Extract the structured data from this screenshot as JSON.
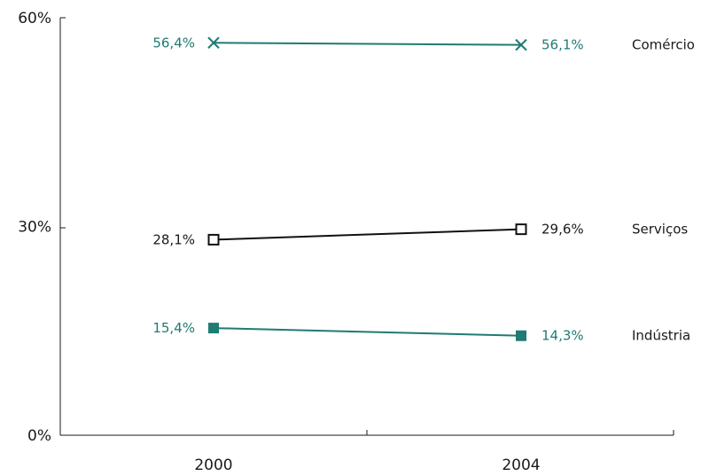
{
  "chart_data": {
    "type": "line",
    "title": "",
    "xlabel": "",
    "ylabel": "",
    "x": [
      "2000",
      "2004"
    ],
    "ylim": [
      0,
      60
    ],
    "y_ticks": [
      {
        "value": 0,
        "label": "0%"
      },
      {
        "value": 30,
        "label": "30%"
      },
      {
        "value": 60,
        "label": "60%"
      }
    ],
    "grid": false,
    "legend": "none",
    "series": [
      {
        "name": "Comércio",
        "values": [
          56.4,
          56.1
        ],
        "labels": [
          "56,4%",
          "56,1%"
        ],
        "color": "#1f7b73",
        "marker": "x",
        "label_color": "#1f7b73"
      },
      {
        "name": "Serviços",
        "values": [
          28.1,
          29.6
        ],
        "labels": [
          "28,1%",
          "29,6%"
        ],
        "color": "#111111",
        "marker": "open-square",
        "label_color": "#1a1a1a"
      },
      {
        "name": "Indústria",
        "values": [
          15.4,
          14.3
        ],
        "labels": [
          "15,4%",
          "14,3%"
        ],
        "color": "#1f7b73",
        "marker": "filled-square",
        "label_color": "#1f7b73"
      }
    ]
  }
}
